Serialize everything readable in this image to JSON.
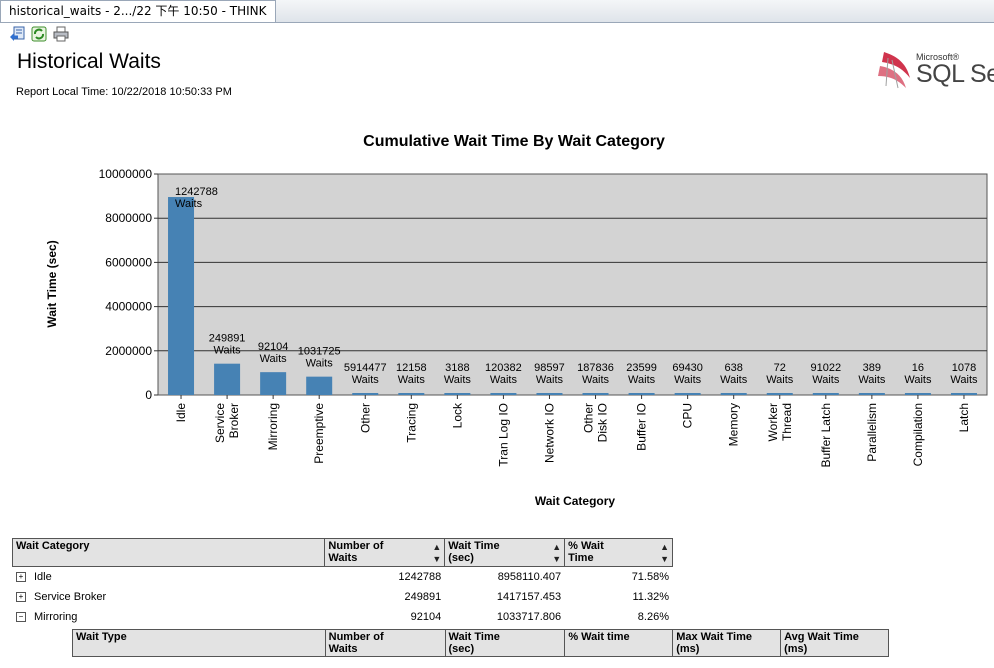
{
  "window": {
    "tab_title": "historical_waits - 2.../22 下午 10:50 - THINK"
  },
  "toolbar": {
    "buttons": [
      "back-icon",
      "refresh-icon",
      "print-icon"
    ]
  },
  "report": {
    "title": "Historical Waits",
    "local_time": "Report Local Time: 10/22/2018 10:50:33 PM"
  },
  "logo": {
    "microsoft": "Microsoft®",
    "product": "SQL Se"
  },
  "chart_data": {
    "type": "bar",
    "title": "Cumulative Wait Time By Wait Category",
    "xlabel": "Wait Category",
    "ylabel": "Wait Time (sec)",
    "ylim": [
      0,
      10000000
    ],
    "yticks": [
      "0",
      "2000000",
      "4000000",
      "6000000",
      "8000000",
      "10000000"
    ],
    "grid": true,
    "bar_color": "#4682b4",
    "categories": [
      "Idle",
      "Service\nBroker",
      "Mirroring",
      "Preemptive",
      "Other",
      "Tracing",
      "Lock",
      "Tran Log IO",
      "Network IO",
      "Other\nDisk IO",
      "Buffer IO",
      "CPU",
      "Memory",
      "Worker\nThread",
      "Buffer Latch",
      "Parallelism",
      "Compilation",
      "Latch"
    ],
    "values": [
      8958110.407,
      1417157.453,
      1033717.806,
      830000,
      90000,
      40000,
      20000,
      20000,
      20000,
      20000,
      20000,
      20000,
      15000,
      10000,
      10000,
      10000,
      10000,
      10000
    ],
    "data_labels": [
      "1242788\nWaits",
      "249891\nWaits",
      "92104\nWaits",
      "1031725\nWaits",
      "5914477\nWaits",
      "12158\nWaits",
      "3188\nWaits",
      "120382\nWaits",
      "98597\nWaits",
      "187836\nWaits",
      "23599\nWaits",
      "69430\nWaits",
      "638\nWaits",
      "72\nWaits",
      "91022\nWaits",
      "389\nWaits",
      "16\nWaits",
      "1078\nWaits"
    ]
  },
  "summary_table": {
    "headers": [
      "Wait Category",
      "Number of\nWaits",
      "Wait Time\n(sec)",
      "% Wait\nTime"
    ],
    "rows": [
      {
        "expander": "+",
        "category": "Idle",
        "waits": "1242788",
        "time": "8958110.407",
        "pct": "71.58%"
      },
      {
        "expander": "+",
        "category": "Service Broker",
        "waits": "249891",
        "time": "1417157.453",
        "pct": "11.32%"
      },
      {
        "expander": "−",
        "category": "Mirroring",
        "waits": "92104",
        "time": "1033717.806",
        "pct": "8.26%"
      }
    ]
  },
  "detail_table": {
    "headers": [
      "Wait Type",
      "Number of\nWaits",
      "Wait Time\n(sec)",
      "% Wait time",
      "Max Wait Time\n(ms)",
      "Avg Wait Time\n(ms)"
    ]
  }
}
